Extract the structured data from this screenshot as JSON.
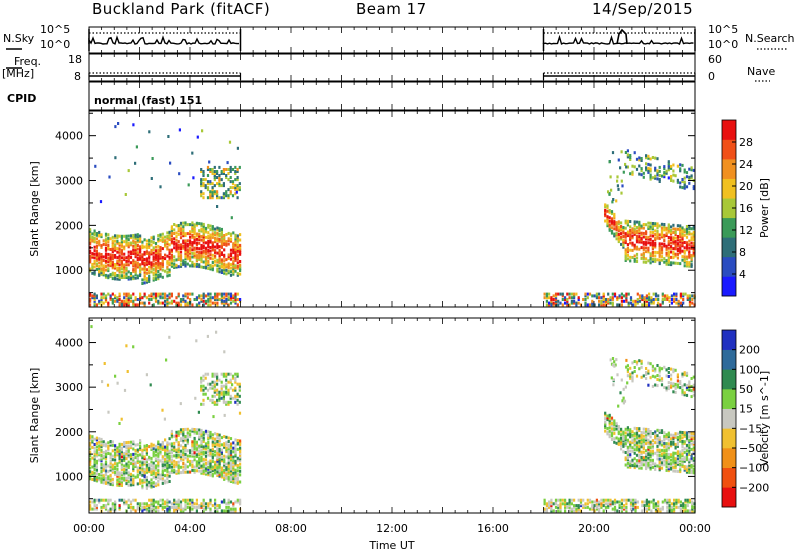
{
  "header": {
    "radar": "Buckland Park (fitACF)",
    "beam": "Beam 17",
    "date": "14/Sep/2015"
  },
  "panels": {
    "nsky_label": "N.Sky",
    "nsearch_label": "N.Search",
    "freq_label": "Freq.",
    "freq_unit": "[MHz]",
    "nave_label": "Nave",
    "cpid_label": "CPID",
    "cpid_name": "normal (fast) 151",
    "nsky_ticks": [
      "10^5",
      "10^0"
    ],
    "nsearch_ticks": [
      "10^5",
      "10^0"
    ],
    "freq_ticks": [
      "18",
      "8"
    ],
    "nave_ticks": [
      "60",
      "0"
    ]
  },
  "chart_data": [
    {
      "type": "heatmap",
      "ylabel": "Slant Range [km]",
      "xlabel": "Time UT",
      "x_tick_labels": [
        "00:00",
        "04:00",
        "08:00",
        "12:00",
        "16:00",
        "20:00",
        "00:00"
      ],
      "x_tick_hours": [
        0,
        4,
        8,
        12,
        16,
        20,
        24
      ],
      "y_ticks": [
        1000,
        2000,
        3000,
        4000
      ],
      "ylim": [
        180,
        4550
      ],
      "xlim": [
        0,
        24
      ],
      "colorbar": {
        "label": "Power [dB]",
        "tick_labels": [
          "4",
          "8",
          "12",
          "16",
          "20",
          "24",
          "28"
        ],
        "ticks": [
          4,
          8,
          12,
          16,
          20,
          24,
          28
        ],
        "range": [
          0,
          32
        ],
        "colors": [
          "#1a1aff",
          "#2a4cc0",
          "#2e6e78",
          "#3a9a58",
          "#a8c838",
          "#f0c020",
          "#f09020",
          "#f05018",
          "#e81010"
        ]
      },
      "data_blocks_hours": [
        [
          0,
          6
        ],
        [
          18,
          24
        ]
      ]
    },
    {
      "type": "heatmap",
      "ylabel": "Slant Range [km]",
      "xlabel": "Time UT",
      "x_tick_labels": [
        "00:00",
        "04:00",
        "08:00",
        "12:00",
        "16:00",
        "20:00",
        "00:00"
      ],
      "x_tick_hours": [
        0,
        4,
        8,
        12,
        16,
        20,
        24
      ],
      "y_ticks": [
        1000,
        2000,
        3000,
        4000
      ],
      "ylim": [
        180,
        4550
      ],
      "xlim": [
        0,
        24
      ],
      "colorbar": {
        "label": "Velocity [m s^-1]",
        "tick_labels": [
          "200",
          "100",
          "50",
          "15",
          "−15",
          "−50",
          "−100",
          "−200"
        ],
        "colors": [
          "#2030c0",
          "#2e6a9a",
          "#2f8a50",
          "#7ad040",
          "#c8c8c0",
          "#f0c030",
          "#f09018",
          "#f05010",
          "#e81010"
        ]
      },
      "data_blocks_hours": [
        [
          0,
          6
        ],
        [
          18,
          24
        ]
      ]
    }
  ]
}
